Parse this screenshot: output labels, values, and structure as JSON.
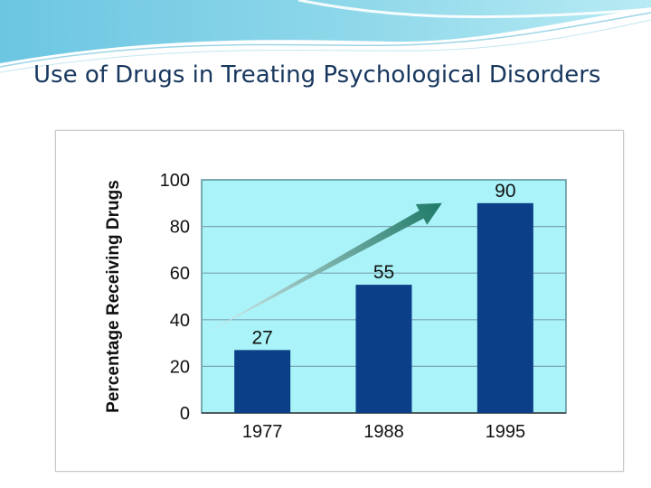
{
  "slide": {
    "title": "Use of Drugs in Treating Psychological Disorders"
  },
  "colors": {
    "plot_background": "#aaf3f8",
    "bar": "#0b3f87",
    "gridline": "#7aa6b4",
    "arrow_start": "#d8e8ec",
    "arrow_end": "#1e7a68",
    "header_wave": "#8fd8ea"
  },
  "chart_data": {
    "type": "bar",
    "title": "",
    "xlabel": "",
    "ylabel": "Percentage Receiving Drugs",
    "categories": [
      "1977",
      "1988",
      "1995"
    ],
    "values": [
      27,
      55,
      90
    ],
    "ylim": [
      0,
      100
    ],
    "yticks": [
      0,
      20,
      40,
      60,
      80,
      100
    ],
    "grid": true,
    "legend": "none",
    "annotations": [
      "upward trend arrow"
    ]
  }
}
